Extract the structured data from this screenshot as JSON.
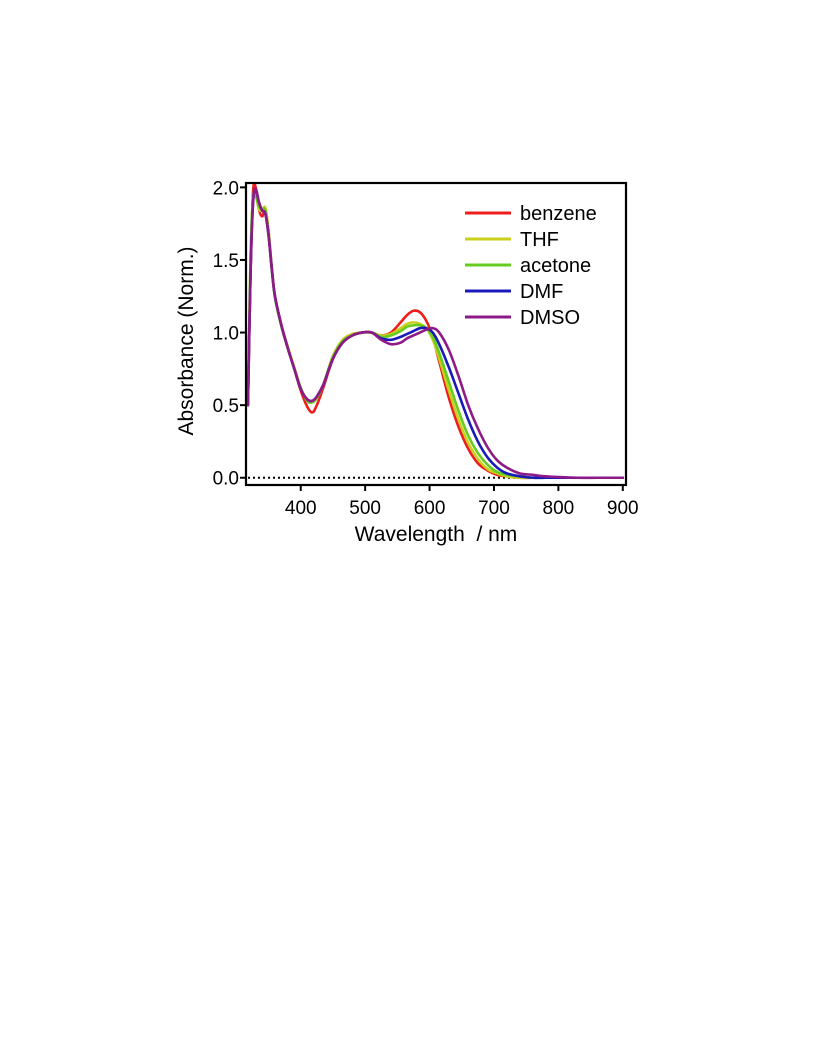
{
  "chart_data": {
    "type": "line",
    "xlabel": "Wavelength  / nm",
    "ylabel": "Absorbance (Norm.)",
    "xlim": [
      315,
      905
    ],
    "ylim": [
      -0.05,
      2.03
    ],
    "xticks": [
      "400",
      "500",
      "600",
      "700",
      "800",
      "900"
    ],
    "xtick_values": [
      400,
      500,
      600,
      700,
      800,
      900
    ],
    "yticks": [
      "0.0",
      "0.5",
      "1.0",
      "1.5",
      "2.0"
    ],
    "ytick_values": [
      0.0,
      0.5,
      1.0,
      1.5,
      2.0
    ],
    "baseline": {
      "y": 0.0,
      "style": "dotted",
      "color": "#000000"
    },
    "legend_position": "top-right",
    "series": [
      {
        "name": "benzene",
        "color": "#ee1c1c",
        "x": [
          318,
          322,
          326,
          330,
          335,
          340,
          345,
          350,
          355,
          360,
          370,
          380,
          390,
          400,
          410,
          418,
          425,
          435,
          450,
          465,
          480,
          495,
          510,
          525,
          540,
          555,
          565,
          575,
          585,
          595,
          605,
          615,
          630,
          645,
          660,
          675,
          690,
          705,
          720,
          740,
          760,
          780,
          800,
          830,
          860,
          880,
          900
        ],
        "y": [
          0.5,
          1.4,
          1.97,
          2.0,
          1.85,
          1.8,
          1.84,
          1.7,
          1.45,
          1.25,
          1.05,
          0.9,
          0.75,
          0.6,
          0.49,
          0.45,
          0.5,
          0.62,
          0.82,
          0.93,
          0.98,
          1.0,
          1.0,
          0.98,
          1.0,
          1.07,
          1.12,
          1.15,
          1.14,
          1.08,
          0.97,
          0.8,
          0.55,
          0.35,
          0.2,
          0.1,
          0.05,
          0.02,
          0.01,
          0.0,
          0.0,
          0.0,
          0.0,
          0.0,
          0.0,
          0.0,
          0.0
        ]
      },
      {
        "name": "THF",
        "color": "#c9cf1a",
        "x": [
          318,
          322,
          326,
          330,
          335,
          340,
          345,
          350,
          355,
          360,
          370,
          380,
          390,
          400,
          410,
          418,
          425,
          435,
          450,
          465,
          480,
          495,
          510,
          525,
          540,
          555,
          565,
          575,
          585,
          595,
          605,
          615,
          630,
          645,
          660,
          675,
          690,
          705,
          720,
          740,
          760,
          780,
          800,
          830,
          860,
          880,
          900
        ],
        "y": [
          0.5,
          1.5,
          1.93,
          1.95,
          1.85,
          1.84,
          1.86,
          1.7,
          1.45,
          1.25,
          1.05,
          0.9,
          0.76,
          0.62,
          0.53,
          0.52,
          0.55,
          0.64,
          0.84,
          0.95,
          0.99,
          1.0,
          1.0,
          0.98,
          0.99,
          1.03,
          1.06,
          1.07,
          1.06,
          1.03,
          0.95,
          0.82,
          0.6,
          0.4,
          0.24,
          0.13,
          0.06,
          0.03,
          0.01,
          0.0,
          0.0,
          0.0,
          0.0,
          0.0,
          0.0,
          0.0,
          0.0
        ]
      },
      {
        "name": "acetone",
        "color": "#66cc22",
        "x": [
          318,
          322,
          326,
          330,
          335,
          340,
          345,
          350,
          355,
          360,
          370,
          380,
          390,
          400,
          410,
          418,
          425,
          435,
          450,
          465,
          480,
          495,
          510,
          525,
          540,
          555,
          565,
          575,
          585,
          595,
          605,
          615,
          630,
          645,
          660,
          675,
          690,
          705,
          720,
          740,
          760,
          780,
          800,
          830,
          860,
          880,
          900
        ],
        "y": [
          0.5,
          1.5,
          1.93,
          1.94,
          1.87,
          1.85,
          1.84,
          1.68,
          1.43,
          1.24,
          1.04,
          0.89,
          0.75,
          0.62,
          0.53,
          0.52,
          0.55,
          0.64,
          0.83,
          0.94,
          0.98,
          1.0,
          1.0,
          0.97,
          0.98,
          1.01,
          1.04,
          1.05,
          1.05,
          1.03,
          0.97,
          0.86,
          0.66,
          0.46,
          0.29,
          0.17,
          0.09,
          0.04,
          0.02,
          0.01,
          0.0,
          0.0,
          0.0,
          0.0,
          0.0,
          0.0,
          0.0
        ]
      },
      {
        "name": "DMF",
        "color": "#1a1ab8",
        "x": [
          318,
          322,
          326,
          330,
          335,
          340,
          345,
          350,
          355,
          360,
          370,
          380,
          390,
          400,
          410,
          418,
          425,
          435,
          450,
          465,
          480,
          495,
          510,
          525,
          540,
          555,
          565,
          575,
          585,
          595,
          605,
          615,
          630,
          645,
          660,
          675,
          690,
          705,
          720,
          740,
          760,
          780,
          800,
          830,
          860,
          880,
          900
        ],
        "y": [
          0.5,
          1.4,
          1.9,
          1.98,
          1.9,
          1.84,
          1.82,
          1.67,
          1.44,
          1.25,
          1.05,
          0.89,
          0.75,
          0.61,
          0.54,
          0.53,
          0.56,
          0.64,
          0.82,
          0.93,
          0.98,
          1.0,
          1.0,
          0.96,
          0.95,
          0.97,
          0.99,
          1.01,
          1.03,
          1.03,
          1.0,
          0.92,
          0.76,
          0.58,
          0.4,
          0.25,
          0.14,
          0.07,
          0.03,
          0.01,
          0.0,
          0.0,
          0.0,
          0.0,
          0.0,
          0.0,
          0.0
        ]
      },
      {
        "name": "DMSO",
        "color": "#8e1a88",
        "x": [
          318,
          322,
          326,
          330,
          335,
          340,
          345,
          350,
          355,
          360,
          370,
          380,
          390,
          400,
          410,
          418,
          425,
          435,
          450,
          465,
          480,
          495,
          510,
          525,
          540,
          555,
          565,
          575,
          585,
          595,
          605,
          615,
          630,
          645,
          660,
          675,
          690,
          705,
          720,
          740,
          760,
          780,
          800,
          830,
          860,
          880,
          900
        ],
        "y": [
          0.5,
          1.4,
          1.9,
          1.99,
          1.9,
          1.84,
          1.82,
          1.67,
          1.44,
          1.25,
          1.05,
          0.89,
          0.75,
          0.61,
          0.54,
          0.53,
          0.56,
          0.64,
          0.82,
          0.93,
          0.98,
          1.0,
          1.0,
          0.95,
          0.92,
          0.93,
          0.96,
          0.98,
          1.0,
          1.02,
          1.03,
          1.0,
          0.88,
          0.7,
          0.5,
          0.34,
          0.21,
          0.12,
          0.07,
          0.03,
          0.02,
          0.01,
          0.005,
          0.0,
          0.0,
          0.0,
          0.0
        ]
      }
    ]
  }
}
